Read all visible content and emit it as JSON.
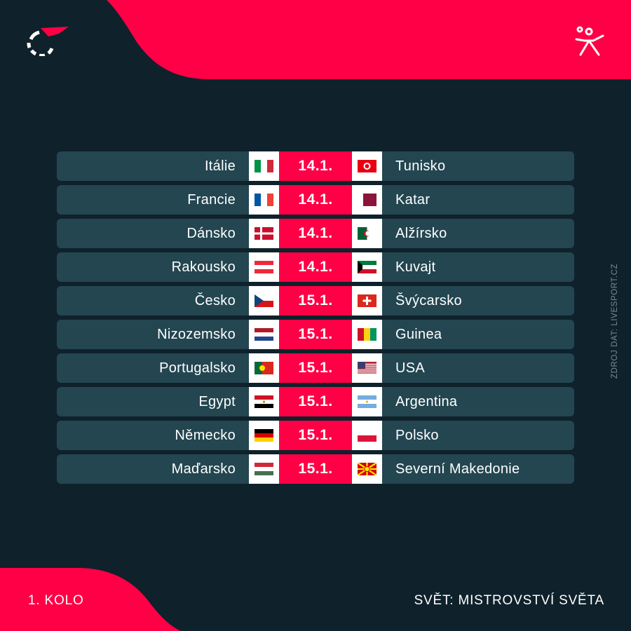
{
  "header": {
    "logo_icon": "flashscore-logo-icon",
    "sport_icon": "handball-player-icon"
  },
  "source_label": "ZDROJ DAT: LIVESPORT.CZ",
  "colors": {
    "background": "#0f212b",
    "row": "#234651",
    "accent": "#ff0046"
  },
  "matches": [
    {
      "home": "Itálie",
      "home_flag": "italy-flag",
      "date": "14.1.",
      "away": "Tunisko",
      "away_flag": "tunisia-flag"
    },
    {
      "home": "Francie",
      "home_flag": "france-flag",
      "date": "14.1.",
      "away": "Katar",
      "away_flag": "qatar-flag"
    },
    {
      "home": "Dánsko",
      "home_flag": "denmark-flag",
      "date": "14.1.",
      "away": "Alžírsko",
      "away_flag": "algeria-flag"
    },
    {
      "home": "Rakousko",
      "home_flag": "austria-flag",
      "date": "14.1.",
      "away": "Kuvajt",
      "away_flag": "kuwait-flag"
    },
    {
      "home": "Česko",
      "home_flag": "czechia-flag",
      "date": "15.1.",
      "away": "Švýcarsko",
      "away_flag": "switzerland-flag"
    },
    {
      "home": "Nizozemsko",
      "home_flag": "netherlands-flag",
      "date": "15.1.",
      "away": "Guinea",
      "away_flag": "guinea-flag"
    },
    {
      "home": "Portugalsko",
      "home_flag": "portugal-flag",
      "date": "15.1.",
      "away": "USA",
      "away_flag": "usa-flag"
    },
    {
      "home": "Egypt",
      "home_flag": "egypt-flag",
      "date": "15.1.",
      "away": "Argentina",
      "away_flag": "argentina-flag"
    },
    {
      "home": "Německo",
      "home_flag": "germany-flag",
      "date": "15.1.",
      "away": "Polsko",
      "away_flag": "poland-flag"
    },
    {
      "home": "Maďarsko",
      "home_flag": "hungary-flag",
      "date": "15.1.",
      "away": "Severní Makedonie",
      "away_flag": "north-macedonia-flag"
    }
  ],
  "footer": {
    "round": "1. KOLO",
    "competition": "SVĚT: MISTROVSTVÍ SVĚTA"
  }
}
